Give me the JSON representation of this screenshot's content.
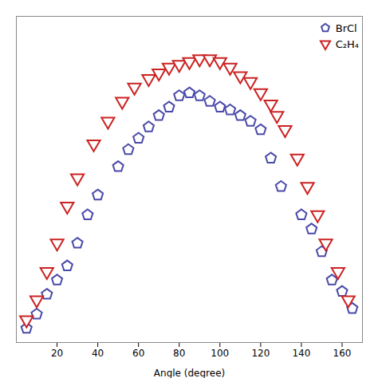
{
  "chart_data": {
    "type": "scatter",
    "xlabel": "Angle (degree)",
    "series": [
      {
        "name": "BrCl",
        "color": "#4a4aaa",
        "marker": "pentagon",
        "x": [
          5,
          10,
          15,
          20,
          25,
          30,
          35,
          40,
          50,
          55,
          60,
          65,
          70,
          75,
          80,
          85,
          90,
          95,
          100,
          105,
          110,
          115,
          120,
          125,
          130,
          140,
          145,
          150,
          155,
          160,
          165
        ],
        "values": [
          0.05,
          0.1,
          0.17,
          0.22,
          0.27,
          0.35,
          0.45,
          0.52,
          0.62,
          0.68,
          0.72,
          0.76,
          0.8,
          0.83,
          0.87,
          0.88,
          0.87,
          0.85,
          0.83,
          0.82,
          0.8,
          0.78,
          0.75,
          0.65,
          0.55,
          0.45,
          0.4,
          0.32,
          0.22,
          0.18,
          0.12
        ]
      },
      {
        "name": "C₂H₄",
        "color": "#cc2222",
        "marker": "triangle-down",
        "x": [
          5,
          10,
          15,
          20,
          25,
          30,
          38,
          45,
          52,
          58,
          65,
          70,
          75,
          80,
          85,
          90,
          95,
          100,
          105,
          110,
          115,
          120,
          125,
          128,
          132,
          138,
          143,
          148,
          152,
          158,
          163
        ],
        "values": [
          0.08,
          0.15,
          0.25,
          0.35,
          0.48,
          0.58,
          0.7,
          0.78,
          0.85,
          0.9,
          0.93,
          0.95,
          0.97,
          0.98,
          0.99,
          1.0,
          1.0,
          0.99,
          0.97,
          0.94,
          0.92,
          0.88,
          0.84,
          0.8,
          0.75,
          0.65,
          0.55,
          0.45,
          0.35,
          0.25,
          0.15
        ]
      }
    ],
    "xlim": [
      0,
      170
    ],
    "ylim": [
      0,
      1.15
    ],
    "xticks": [
      20,
      40,
      60,
      80,
      100,
      120,
      140,
      160
    ],
    "tick_labels": "x",
    "legend": "upper right"
  }
}
